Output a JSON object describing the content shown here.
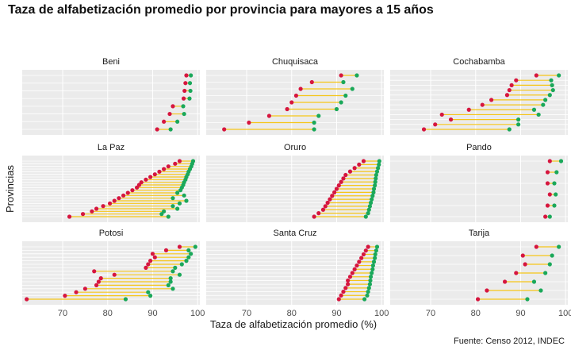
{
  "chart_data": {
    "type": "dumbbell",
    "title": "Taza de alfabetización promedio por provincia para mayores a 15 años",
    "xlabel": "Taza de alfabetización promedio (%)",
    "ylabel": "Provincias",
    "caption": "Fuente: Censo 2012, INDEC",
    "xlim": [
      61,
      100.5
    ],
    "xticks": [
      70,
      80,
      90,
      100
    ],
    "grid": true,
    "colors": {
      "low": "#d6163f",
      "high": "#1aa85a",
      "segment": "#f5c518",
      "panel": "#ebebeb",
      "grid": "#ffffff"
    },
    "panels": [
      {
        "name": "Beni",
        "low": [
          97.5,
          97.3,
          97.1,
          96.9,
          94.5,
          93.8,
          92.5,
          91.0
        ],
        "high": [
          98.5,
          98.3,
          98.4,
          98.2,
          96.8,
          97.0,
          95.5,
          94.0
        ]
      },
      {
        "name": "Chuquisaca",
        "low": [
          91.0,
          84.5,
          82.0,
          81.0,
          80.0,
          79.0,
          75.0,
          70.5,
          65.0
        ],
        "high": [
          94.5,
          91.5,
          93.5,
          92.0,
          91.0,
          90.0,
          86.0,
          85.0,
          85.0
        ]
      },
      {
        "name": "Cochabamba",
        "low": [
          93.5,
          89.0,
          88.0,
          87.5,
          87.0,
          83.5,
          81.5,
          78.5,
          72.5,
          74.5,
          71.0,
          68.5
        ],
        "high": [
          98.5,
          96.8,
          97.0,
          97.2,
          96.5,
          95.5,
          95.0,
          93.0,
          94.0,
          89.5,
          89.5,
          87.5
        ]
      },
      {
        "name": "La Paz",
        "low": [
          96.0,
          95.0,
          93.5,
          92.5,
          91.5,
          90.5,
          89.5,
          88.5,
          87.5,
          87.0,
          86.5,
          85.5,
          84.5,
          83.5,
          82.5,
          81.5,
          80.5,
          79.0,
          77.5,
          76.5,
          74.5,
          71.5
        ],
        "high": [
          99.0,
          98.8,
          98.6,
          98.3,
          98.0,
          97.8,
          97.5,
          97.3,
          97.0,
          96.8,
          96.5,
          96.2,
          95.5,
          97.0,
          94.5,
          97.5,
          96.0,
          94.5,
          95.5,
          92.5,
          92.0,
          93.5
        ]
      },
      {
        "name": "Oruro",
        "low": [
          96.0,
          95.0,
          94.0,
          93.0,
          92.0,
          91.5,
          91.0,
          90.5,
          90.0,
          89.5,
          89.0,
          88.5,
          88.0,
          87.5,
          87.0,
          86.0,
          85.0
        ],
        "high": [
          99.5,
          99.4,
          99.2,
          99.0,
          98.8,
          98.7,
          98.6,
          98.5,
          98.3,
          98.2,
          98.0,
          97.8,
          97.6,
          97.4,
          97.2,
          97.0,
          96.5
        ]
      },
      {
        "name": "Pando",
        "low": [
          96.5,
          96.0,
          96.0,
          96.5,
          96.0,
          95.5
        ],
        "high": [
          99.0,
          98.0,
          97.5,
          97.8,
          97.5,
          96.5
        ]
      },
      {
        "name": "Potosi",
        "low": [
          96.0,
          93.0,
          90.0,
          90.5,
          89.5,
          89.0,
          88.5,
          77.0,
          81.5,
          78.5,
          78.0,
          77.5,
          75.0,
          73.0,
          70.5,
          62.0
        ],
        "high": [
          99.5,
          98.0,
          98.5,
          98.0,
          97.5,
          96.5,
          95.0,
          94.5,
          96.0,
          94.0,
          94.0,
          93.5,
          94.5,
          89.0,
          89.5,
          84.0
        ]
      },
      {
        "name": "Santa Cruz",
        "low": [
          97.0,
          96.5,
          96.0,
          95.5,
          95.0,
          94.5,
          94.0,
          93.5,
          93.0,
          92.5,
          92.5,
          92.0,
          91.5,
          91.0,
          90.5
        ],
        "high": [
          99.0,
          98.8,
          98.6,
          98.5,
          98.3,
          98.1,
          98.0,
          97.8,
          97.6,
          97.5,
          97.4,
          97.2,
          97.0,
          96.8,
          96.2
        ]
      },
      {
        "name": "Tarija",
        "low": [
          93.5,
          90.5,
          91.0,
          89.0,
          86.5,
          82.5,
          80.5
        ],
        "high": [
          98.5,
          97.0,
          96.5,
          95.5,
          93.0,
          94.5,
          91.5
        ]
      }
    ]
  }
}
